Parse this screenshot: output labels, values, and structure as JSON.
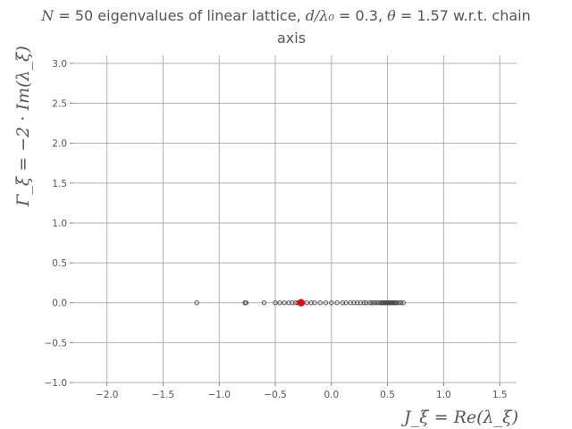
{
  "chart_data": {
    "type": "scatter",
    "title": {
      "line1_parts": [
        "N",
        " = 50 eigenvalues of linear lattice, ",
        "d/λ₀",
        " = 0.3, ",
        "θ",
        " = 1.57 w.r.t. chain"
      ],
      "line2": "axis"
    },
    "xlabel": "J_ξ = Re(λ_ξ)",
    "ylabel": "Γ_ξ = −2 · Im(λ_ξ)",
    "xlim": [
      -2.3,
      1.65
    ],
    "ylim": [
      -1.0,
      3.1
    ],
    "xticks": [
      -2.0,
      -1.5,
      -1.0,
      -0.5,
      0.0,
      0.5,
      1.0,
      1.5
    ],
    "xtick_labels": [
      "−2.0",
      "−1.5",
      "−1.0",
      "−0.5",
      "0.0",
      "0.5",
      "1.0",
      "1.5"
    ],
    "yticks": [
      -1.0,
      -0.5,
      0.0,
      0.5,
      1.0,
      1.5,
      2.0,
      2.5,
      3.0
    ],
    "ytick_labels": [
      "−1.0",
      "−0.5",
      "0.0",
      "0.5",
      "1.0",
      "1.5",
      "2.0",
      "2.5",
      "3.0"
    ],
    "grid": true,
    "series": [
      {
        "marker": "open-circle",
        "color": "#444444",
        "x": [
          -1.2,
          -0.77,
          -0.76,
          -0.6,
          -0.5,
          -0.46,
          -0.42,
          -0.38,
          -0.35,
          -0.32,
          -0.3,
          -0.28,
          -0.22,
          -0.18,
          -0.15,
          -0.1,
          -0.05,
          0.0,
          0.05,
          0.1,
          0.13,
          0.17,
          0.2,
          0.23,
          0.26,
          0.29,
          0.31,
          0.34,
          0.36,
          0.38,
          0.4,
          0.42,
          0.44,
          0.45,
          0.46,
          0.47,
          0.48,
          0.49,
          0.5,
          0.51,
          0.52,
          0.53,
          0.54,
          0.55,
          0.56,
          0.57,
          0.58,
          0.6,
          0.62,
          0.64
        ],
        "y": [
          0,
          0,
          0,
          0,
          0,
          0,
          0,
          0,
          0,
          0,
          0,
          0,
          0,
          0,
          0,
          0,
          0,
          0,
          0,
          0,
          0,
          0,
          0,
          0,
          0,
          0,
          0,
          0,
          0,
          0,
          0,
          0,
          0,
          0,
          0,
          0,
          0,
          0,
          0,
          0,
          0,
          0,
          0,
          0,
          0,
          0,
          0,
          0,
          0,
          0
        ]
      },
      {
        "marker": "filled-circle",
        "color": "#e8000b",
        "x": [
          -0.27
        ],
        "y": [
          0
        ]
      }
    ]
  }
}
